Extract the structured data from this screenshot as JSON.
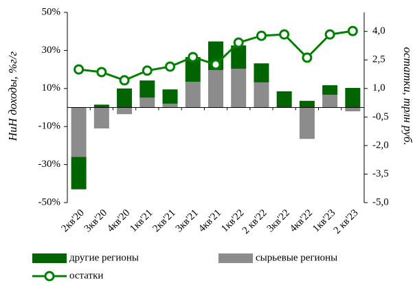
{
  "chart_data": {
    "type": "bar",
    "categories": [
      "2кв'20",
      "3кв'20",
      "4кв'20",
      "1кв'21",
      "2кв'21",
      "3кв'21",
      "4кв'21",
      "1кв'22",
      "2 кв'22",
      "3кв'22",
      "4кв'22",
      "1кв'23",
      "2 кв'23"
    ],
    "ylabel": "НиН доходы, %г/г",
    "y2label": "остатки, трлн руб.",
    "ylim": [
      -50,
      50
    ],
    "yticks": [
      {
        "value": 50,
        "label": "50%"
      },
      {
        "value": 30,
        "label": "30%"
      },
      {
        "value": 10,
        "label": "10%"
      },
      {
        "value": -10,
        "label": "-10%"
      },
      {
        "value": -30,
        "label": "-30%"
      },
      {
        "value": -50,
        "label": "-50%"
      }
    ],
    "y2lim": [
      -5,
      5
    ],
    "y2ticks": [
      {
        "value": 4,
        "label": "4,0"
      },
      {
        "value": 2.5,
        "label": "2,5"
      },
      {
        "value": 1,
        "label": "1,0"
      },
      {
        "value": -0.5,
        "label": "-0,5"
      },
      {
        "value": -2,
        "label": "-2,0"
      },
      {
        "value": -3.5,
        "label": "-3,5"
      },
      {
        "value": -5,
        "label": "-5,0"
      }
    ],
    "series": [
      {
        "name": "сырьевые регионы",
        "type": "bar",
        "color": "#8c8c8c",
        "values": [
          -26,
          -11,
          -3.5,
          5.2,
          2,
          13.5,
          19.7,
          20.4,
          13.2,
          0,
          -16.5,
          6.7,
          -2
        ]
      },
      {
        "name": "другие регионы",
        "type": "bar",
        "color": "#006400",
        "values": [
          -17,
          1.5,
          10,
          9,
          7.5,
          13,
          15,
          12.2,
          10,
          8.5,
          3.5,
          5,
          10.3
        ]
      },
      {
        "name": "остатки",
        "type": "line",
        "axis": "y2",
        "color": "#008000",
        "values": [
          2.0,
          1.86,
          1.43,
          1.94,
          2.15,
          2.65,
          2.26,
          3.41,
          3.77,
          3.84,
          2.62,
          3.84,
          4.02
        ]
      }
    ]
  }
}
